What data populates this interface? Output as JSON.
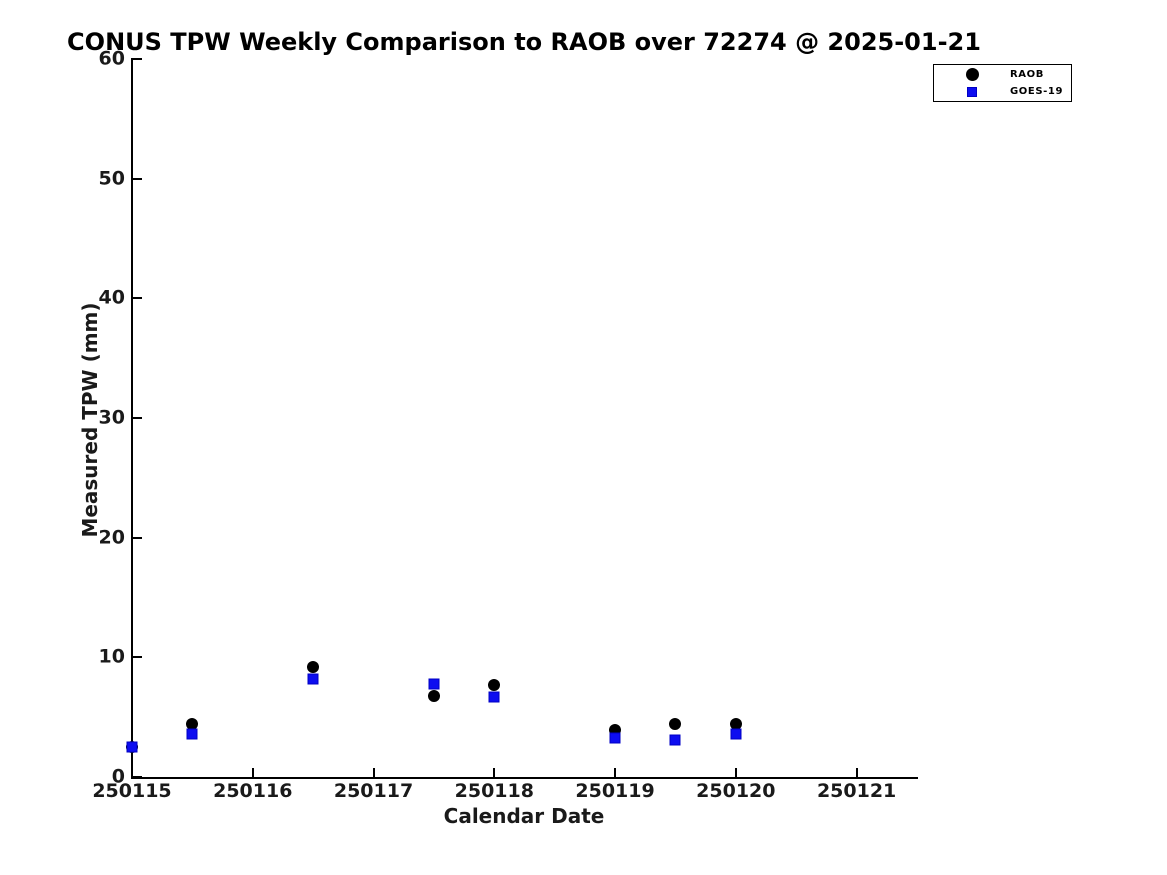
{
  "chart_data": {
    "type": "scatter",
    "title": "CONUS TPW Weekly Comparison to RAOB over 72274 @ 2025-01-21",
    "xlabel": "Calendar Date",
    "ylabel": "Measured TPW (mm)",
    "xlim": [
      250115,
      250121.5
    ],
    "ylim": [
      0,
      60
    ],
    "xticks": [
      250115,
      250116,
      250117,
      250118,
      250119,
      250120,
      250121
    ],
    "yticks": [
      0,
      10,
      20,
      30,
      40,
      50,
      60
    ],
    "grid": false,
    "legend_position": "top-right",
    "background_color": "#ffffff",
    "axis_color": "#000000",
    "series": [
      {
        "name": "RAOB",
        "marker": "circle",
        "color": "#000000",
        "x": [
          250115,
          250115.5,
          250116.5,
          250117.5,
          250118,
          250119,
          250119.5,
          250120
        ],
        "y": [
          2.5,
          4.4,
          9.2,
          6.8,
          7.7,
          3.9,
          4.4,
          4.4
        ]
      },
      {
        "name": "GOES-19",
        "marker": "square",
        "color": "#0d0df0",
        "x": [
          250115,
          250115.5,
          250116.5,
          250117.5,
          250118,
          250119,
          250119.5,
          250120
        ],
        "y": [
          2.5,
          3.6,
          8.2,
          7.8,
          6.7,
          3.3,
          3.1,
          3.6
        ]
      }
    ]
  }
}
